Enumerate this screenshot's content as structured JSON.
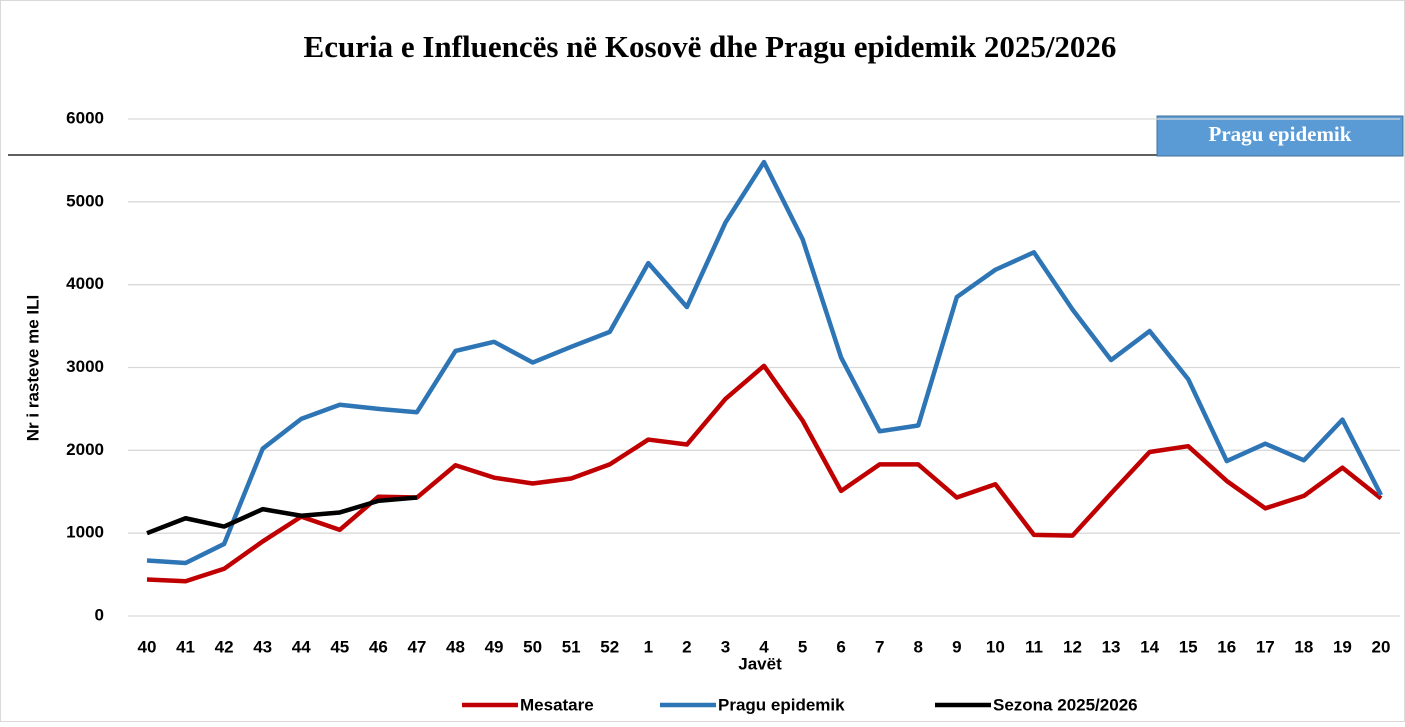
{
  "chart_data": {
    "type": "line",
    "title": "Ecuria e Influencës në Kosovë dhe Pragu epidemik 2025/2026",
    "annotation": "Pragu epidemik",
    "x_label": "Javët",
    "y_label": "Nr i rasteve me ILI",
    "categories": [
      "40",
      "41",
      "42",
      "43",
      "44",
      "45",
      "46",
      "47",
      "48",
      "49",
      "50",
      "51",
      "52",
      "1",
      "2",
      "3",
      "4",
      "5",
      "6",
      "7",
      "8",
      "9",
      "10",
      "11",
      "12",
      "13",
      "14",
      "15",
      "16",
      "17",
      "18",
      "19",
      "20"
    ],
    "series": [
      {
        "name": "Mesatare",
        "color": "#c00000",
        "values": [
          440,
          420,
          570,
          900,
          1200,
          1040,
          1440,
          1430,
          1820,
          1670,
          1600,
          1660,
          1830,
          2130,
          2070,
          2620,
          3020,
          2360,
          1510,
          1830,
          1830,
          1430,
          1590,
          980,
          970,
          1480,
          1980,
          2050,
          1630,
          1300,
          1450,
          1790,
          1420
        ]
      },
      {
        "name": "Pragu epidemik",
        "color": "#2e75b6",
        "values": [
          670,
          640,
          870,
          2020,
          2380,
          2550,
          2500,
          2460,
          3200,
          3310,
          3060,
          3250,
          3430,
          4260,
          3730,
          4750,
          5480,
          4550,
          3120,
          2230,
          2300,
          3850,
          4180,
          4390,
          3700,
          3090,
          3440,
          2860,
          1870,
          2080,
          1880,
          2370,
          1460
        ]
      },
      {
        "name": "Sezona 2025/2026",
        "color": "#000000",
        "values": [
          1000,
          1180,
          1080,
          1290,
          1210,
          1250,
          1390,
          1430,
          null,
          null,
          null,
          null,
          null,
          null,
          null,
          null,
          null,
          null,
          null,
          null,
          null,
          null,
          null,
          null,
          null,
          null,
          null,
          null,
          null,
          null,
          null,
          null,
          null
        ]
      }
    ],
    "ylim": [
      0,
      6000
    ],
    "yticks": [
      0,
      1000,
      2000,
      3000,
      4000,
      5000,
      6000
    ],
    "grid": true,
    "legend": "bottom"
  }
}
